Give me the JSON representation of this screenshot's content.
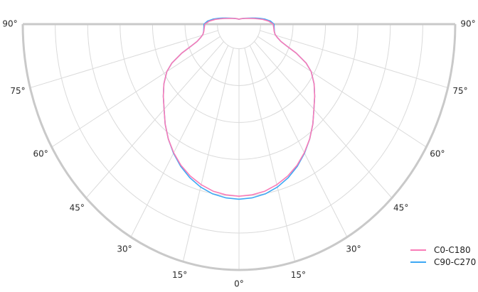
{
  "chart_data": {
    "type": "line",
    "subtype": "polar-photometric-light-distribution",
    "title": "",
    "orientation": "0° at nadir (bottom), 90° at horizon (flat top edge), curves may extend slightly above horizon",
    "angle_tick_labels_left": [
      "90°",
      "75°",
      "60°",
      "45°",
      "30°",
      "15°"
    ],
    "angle_tick_label_bottom": "0°",
    "angle_tick_labels_right": [
      "90°",
      "75°",
      "60°",
      "45°",
      "30°",
      "15°"
    ],
    "angle_ticks_deg": [
      90,
      75,
      60,
      45,
      30,
      15,
      0
    ],
    "grid": {
      "spoke_step_deg": 15,
      "spoke_range_deg": [
        -75,
        75
      ],
      "hub_radius_norm": 0.1,
      "ring_radii_norm": [
        0.1,
        0.25,
        0.4,
        0.55,
        0.7,
        0.85,
        1.0
      ],
      "outer_border": true,
      "flat_top_edge": true,
      "radial_value_labels_shown": false
    },
    "legend_position": "bottom-right",
    "series": [
      {
        "name": "C0-C180",
        "color": "#f97cb7",
        "symmetric_mirror": true,
        "r_scale": "relative intensity, normalized to outer ring = 1.0",
        "points": [
          [
            0,
            0.7
          ],
          [
            5,
            0.697
          ],
          [
            10,
            0.69
          ],
          [
            15,
            0.676
          ],
          [
            20,
            0.658
          ],
          [
            25,
            0.634
          ],
          [
            30,
            0.604
          ],
          [
            35,
            0.57
          ],
          [
            40,
            0.531
          ],
          [
            45,
            0.49
          ],
          [
            50,
            0.457
          ],
          [
            55,
            0.424
          ],
          [
            60,
            0.385
          ],
          [
            63,
            0.348
          ],
          [
            66,
            0.29
          ],
          [
            68,
            0.24
          ],
          [
            70,
            0.207
          ],
          [
            73,
            0.185
          ],
          [
            76,
            0.172
          ],
          [
            80,
            0.165
          ],
          [
            85,
            0.161
          ],
          [
            90,
            0.158
          ],
          [
            95,
            0.138
          ],
          [
            100,
            0.112
          ],
          [
            104,
            0.09
          ],
          [
            108,
            0.074
          ],
          [
            112,
            0.062
          ],
          [
            118,
            0.05
          ],
          [
            126,
            0.04
          ],
          [
            136,
            0.032
          ],
          [
            150,
            0.026
          ],
          [
            165,
            0.022
          ],
          [
            180,
            0.02
          ]
        ]
      },
      {
        "name": "C90-C270",
        "color": "#3da8f4",
        "symmetric_mirror": true,
        "r_scale": "relative intensity, normalized to outer ring = 1.0",
        "points": [
          [
            0,
            0.712
          ],
          [
            5,
            0.709
          ],
          [
            10,
            0.701
          ],
          [
            15,
            0.686
          ],
          [
            20,
            0.665
          ],
          [
            25,
            0.638
          ],
          [
            30,
            0.606
          ],
          [
            35,
            0.57
          ],
          [
            40,
            0.531
          ],
          [
            45,
            0.49
          ],
          [
            50,
            0.457
          ],
          [
            55,
            0.424
          ],
          [
            60,
            0.385
          ],
          [
            63,
            0.348
          ],
          [
            66,
            0.29
          ],
          [
            68,
            0.24
          ],
          [
            70,
            0.207
          ],
          [
            73,
            0.185
          ],
          [
            76,
            0.172
          ],
          [
            80,
            0.166
          ],
          [
            85,
            0.163
          ],
          [
            90,
            0.162
          ],
          [
            95,
            0.146
          ],
          [
            100,
            0.12
          ],
          [
            104,
            0.098
          ],
          [
            108,
            0.08
          ],
          [
            112,
            0.066
          ],
          [
            118,
            0.052
          ],
          [
            126,
            0.041
          ],
          [
            136,
            0.033
          ],
          [
            150,
            0.026
          ],
          [
            165,
            0.022
          ],
          [
            180,
            0.02
          ]
        ]
      }
    ]
  },
  "legend": {
    "items": [
      {
        "label": "C0-C180",
        "color": "#f97cb7"
      },
      {
        "label": "C90-C270",
        "color": "#3da8f4"
      }
    ]
  },
  "colors": {
    "background": "#ffffff",
    "border": "#c9c9c9",
    "grid": "#dadada",
    "label_text": "#2b2b2b"
  }
}
